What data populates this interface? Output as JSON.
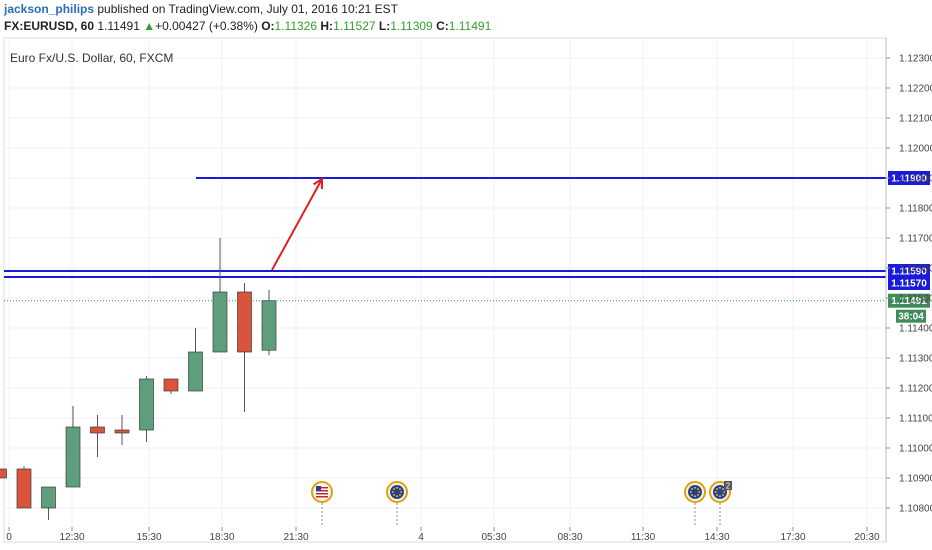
{
  "header": {
    "author": "jackson_philips",
    "published": " published on TradingView.com, July 01, 2016 10:21 EST",
    "symbol": "FX:EURUSD, 60",
    "last": "1.11491",
    "change": "+0.00427 (+0.38%)",
    "o_label": "O:",
    "o_value": "1.11326",
    "h_label": "H:",
    "h_value": "1.11527",
    "l_label": "L:",
    "l_value": "1.11309",
    "c_label": "C:",
    "c_value": "1.11491"
  },
  "colors": {
    "bull": "#5f9e7d",
    "bear": "#d9533d",
    "level_line": "#1a1adb",
    "arrow": "#e02020",
    "grid": "#eef0f3",
    "current_price": "#3f8c5a",
    "header_green": "#33a02c"
  },
  "chart_data": {
    "type": "candlestick",
    "title": "Euro Fx/U.S. Dollar, 60, FXCM",
    "x_ticks": [
      "0",
      "12:30",
      "15:30",
      "18:30",
      "21:30",
      "4",
      "05:30",
      "08:30",
      "11:30",
      "14:30",
      "17:30",
      "20:30"
    ],
    "y_ticks": [
      "1.12300",
      "1.12200",
      "1.12100",
      "1.12000",
      "1.11900",
      "1.11800",
      "1.11700",
      "1.11600",
      "1.11500",
      "1.11400",
      "1.11300",
      "1.11200",
      "1.11100",
      "1.11000",
      "1.10900",
      "1.10800"
    ],
    "ylim": [
      1.10765,
      1.12335
    ],
    "candles": [
      {
        "o": 1.1093,
        "h": 1.10935,
        "l": 1.1089,
        "c": 1.109
      },
      {
        "o": 1.1093,
        "h": 1.1094,
        "l": 1.108,
        "c": 1.108
      },
      {
        "o": 1.108,
        "h": 1.1087,
        "l": 1.1076,
        "c": 1.1087
      },
      {
        "o": 1.1087,
        "h": 1.1114,
        "l": 1.1087,
        "c": 1.1107
      },
      {
        "o": 1.1107,
        "h": 1.1111,
        "l": 1.1097,
        "c": 1.1105
      },
      {
        "o": 1.1106,
        "h": 1.1111,
        "l": 1.1101,
        "c": 1.1105
      },
      {
        "o": 1.1106,
        "h": 1.1124,
        "l": 1.1102,
        "c": 1.1123
      },
      {
        "o": 1.1123,
        "h": 1.1122,
        "l": 1.1118,
        "c": 1.1119
      },
      {
        "o": 1.1119,
        "h": 1.114,
        "l": 1.1119,
        "c": 1.1132
      },
      {
        "o": 1.1132,
        "h": 1.117,
        "l": 1.1132,
        "c": 1.1152
      },
      {
        "o": 1.1152,
        "h": 1.1155,
        "l": 1.1112,
        "c": 1.1132
      },
      {
        "o": 1.11326,
        "h": 1.11527,
        "l": 1.11309,
        "c": 1.11491
      }
    ],
    "levels": [
      {
        "value": 1.1159,
        "label": "1.11590"
      },
      {
        "value": 1.1157,
        "label": "1.11570"
      },
      {
        "value": 1.119,
        "label": "1.11900"
      }
    ],
    "current_price": {
      "value": 1.11491,
      "label": "1.11491",
      "countdown": "38:04"
    },
    "arrow": {
      "from": 1.1159,
      "to": 1.119
    },
    "events": [
      {
        "icon": "us-flag-icon",
        "badge": ""
      },
      {
        "icon": "eu-flag-icon",
        "badge": ""
      },
      {
        "icon": "eu-flag-icon",
        "badge": ""
      },
      {
        "icon": "eu-flag-icon",
        "badge": "2"
      }
    ]
  }
}
